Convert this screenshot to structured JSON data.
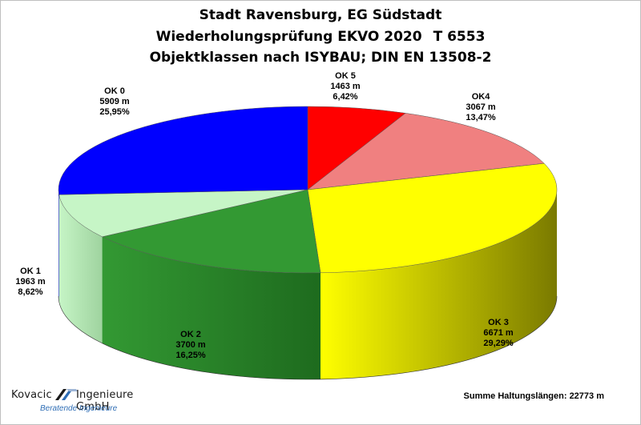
{
  "title_lines": [
    "Stadt Ravensburg, EG Südstadt",
    "Wiederholungsprüfung EKVO 2020",
    "T 6553",
    "Objektklassen nach ISYBAU; DIN EN 13508-2"
  ],
  "chart_data": {
    "type": "pie",
    "style": "3d-exploded-none",
    "title": "Stadt Ravensburg, EG Südstadt / Wiederholungsprüfung EKVO 2020   T 6553 / Objektklassen nach ISYBAU; DIN EN 13508-2",
    "slices": [
      {
        "name": "OK 5",
        "length": "1463 m",
        "percent": "6,42%",
        "value": 6.42,
        "color": "#ff0000",
        "side_color": "#990000"
      },
      {
        "name": "OK4",
        "length": "3067 m",
        "percent": "13,47%",
        "value": 13.47,
        "color": "#f08080",
        "side_color": "#9c4f4f"
      },
      {
        "name": "OK 3",
        "length": "6671 m",
        "percent": "29,29%",
        "value": 29.29,
        "color": "#ffff00",
        "side_color": "#7a7a00"
      },
      {
        "name": "OK 2",
        "length": "3700 m",
        "percent": "16,25%",
        "value": 16.25,
        "color": "#339933",
        "side_color": "#1e6b1e"
      },
      {
        "name": "OK 1",
        "length": "1963 m",
        "percent": "8,62%",
        "value": 8.62,
        "color": "#c6f5c6",
        "side_color": "#9fd39f"
      },
      {
        "name": "OK 0",
        "length": "5909 m",
        "percent": "25,95%",
        "value": 25.95,
        "color": "#0000ff",
        "side_color": "#00008a"
      }
    ]
  },
  "footer": {
    "company_left": "Kovacic",
    "company_right": "Ingenieure GmbH",
    "tagline": "Beratende Ingenieure",
    "sum_label": "Summe Haltungslängen: 22773 m"
  }
}
